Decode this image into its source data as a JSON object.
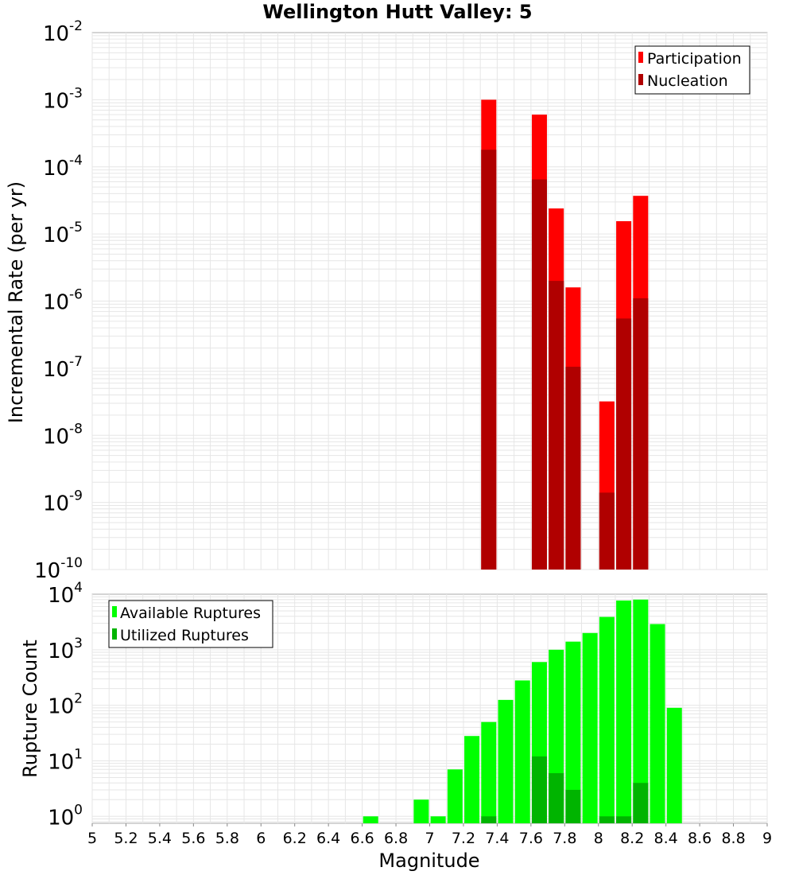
{
  "title": "Wellington Hutt Valley: 5",
  "xlabel": "Magnitude",
  "xticks": [
    "5",
    "5.2",
    "5.4",
    "5.6",
    "5.8",
    "6",
    "6.2",
    "6.4",
    "6.6",
    "6.8",
    "7",
    "7.2",
    "7.4",
    "7.6",
    "7.8",
    "8",
    "8.2",
    "8.4",
    "8.6",
    "8.8",
    "9"
  ],
  "colors": {
    "participation": "#ff0000",
    "nucleation": "#b00000",
    "available": "#00ff00",
    "utilized": "#00b400",
    "grid": "#e6e6e6",
    "frame": "#aaaaaa"
  },
  "chart_data": [
    {
      "type": "bar",
      "title": "Wellington Hutt Valley: 5",
      "ylabel": "Incremental Rate (per yr)",
      "xlabel": "Magnitude",
      "xlim": [
        5,
        9
      ],
      "ylim": [
        1e-10,
        0.01
      ],
      "yscale": "log",
      "ytick_exponents": [
        "-2",
        "-3",
        "-4",
        "-5",
        "-6",
        "-7",
        "-8",
        "-9",
        "-10"
      ],
      "legend_position": "top-right",
      "x": [
        7.35,
        7.65,
        7.75,
        7.85,
        8.05,
        8.15,
        8.25
      ],
      "series": [
        {
          "name": "Participation",
          "values": [
            0.001,
            0.0006,
            2.4e-05,
            1.6e-06,
            3.2e-08,
            1.55e-05,
            3.7e-05
          ]
        },
        {
          "name": "Nucleation",
          "values": [
            0.00018,
            6.5e-05,
            2e-06,
            1.05e-07,
            1.4e-09,
            5.5e-07,
            1.1e-06
          ]
        }
      ]
    },
    {
      "type": "bar",
      "ylabel": "Rupture Count",
      "xlabel": "Magnitude",
      "xlim": [
        5,
        9
      ],
      "ylim": [
        0.75,
        10000
      ],
      "yscale": "log",
      "ytick_exponents": [
        "4",
        "3",
        "2",
        "1",
        "0"
      ],
      "legend_position": "top-left",
      "series": [
        {
          "name": "Available Ruptures",
          "x": [
            6.65,
            6.95,
            7.05,
            7.15,
            7.25,
            7.35,
            7.45,
            7.55,
            7.65,
            7.75,
            7.85,
            7.95,
            8.05,
            8.15,
            8.25,
            8.35,
            8.45
          ],
          "values": [
            1,
            2,
            1,
            7,
            28,
            50,
            125,
            280,
            600,
            1000,
            1400,
            2000,
            3900,
            7700,
            8000,
            2900,
            90
          ]
        },
        {
          "name": "Utilized Ruptures",
          "x": [
            7.35,
            7.65,
            7.75,
            7.85,
            8.05,
            8.15,
            8.25
          ],
          "values": [
            1,
            12,
            6,
            3,
            1,
            1,
            4
          ]
        }
      ]
    }
  ]
}
